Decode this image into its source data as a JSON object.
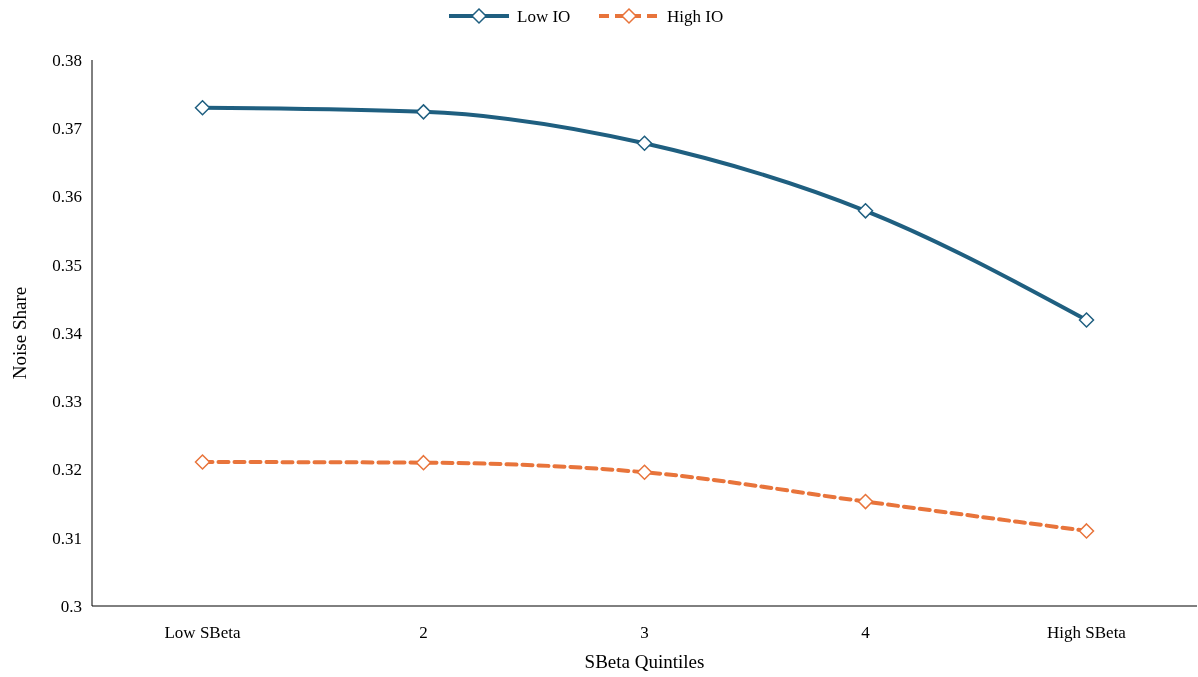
{
  "chart_data": {
    "type": "line",
    "xlabel": "SBeta Quintiles",
    "ylabel": "Noise Share",
    "categories": [
      "Low SBeta",
      "2",
      "3",
      "4",
      "High SBeta"
    ],
    "series": [
      {
        "name": "Low IO",
        "color": "#1f5f80",
        "line_style": "solid",
        "values": [
          0.373,
          0.3724,
          0.3678,
          0.3579,
          0.3419
        ]
      },
      {
        "name": "High IO",
        "color": "#e8743b",
        "line_style": "dashed",
        "values": [
          0.3211,
          0.321,
          0.3196,
          0.3153,
          0.311
        ]
      }
    ],
    "ylim": [
      0.3,
      0.38
    ],
    "yticks": [
      0.3,
      0.31,
      0.32,
      0.33,
      0.34,
      0.35,
      0.36,
      0.37,
      0.38
    ],
    "grid": false,
    "legend": "top",
    "marker": "diamond"
  }
}
